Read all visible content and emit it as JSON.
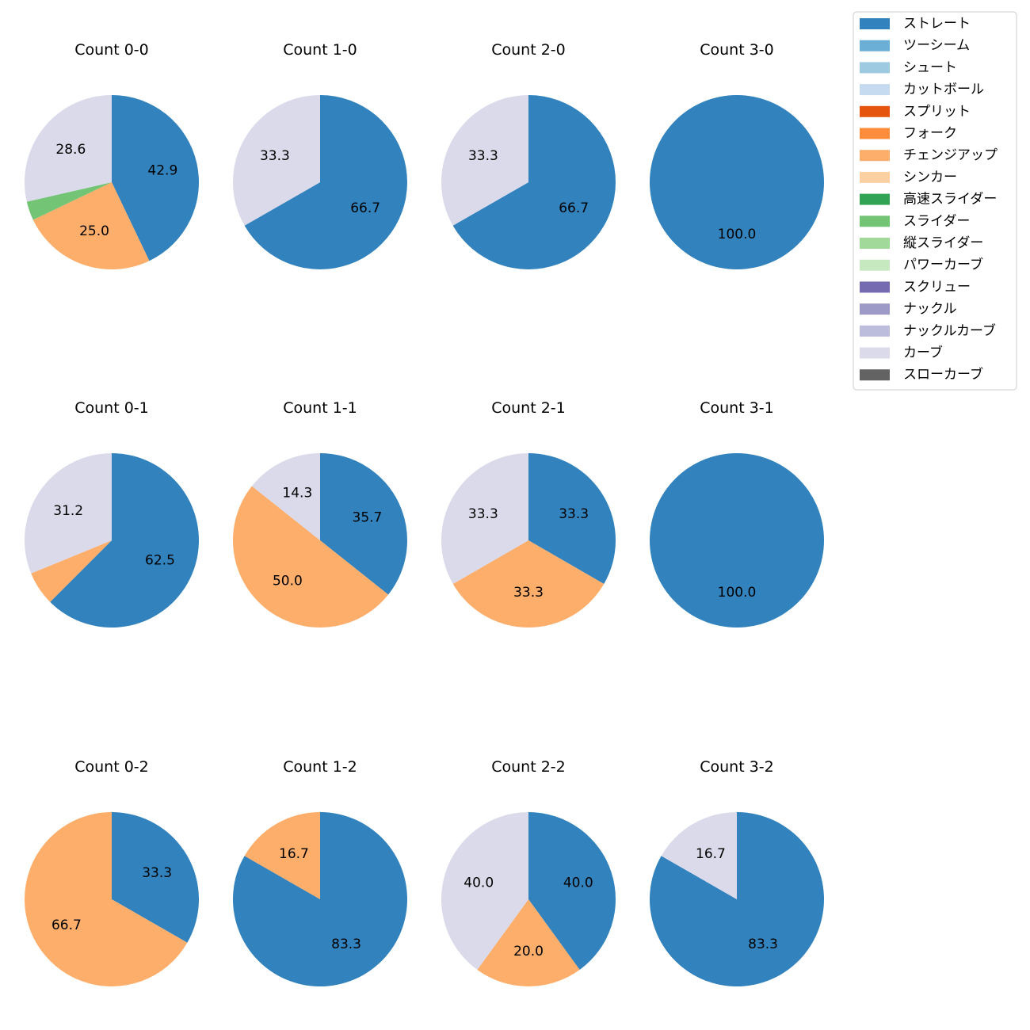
{
  "legend": [
    {
      "label": "ストレート",
      "color": "#3182bd"
    },
    {
      "label": "ツーシーム",
      "color": "#6baed6"
    },
    {
      "label": "シュート",
      "color": "#9ecae1"
    },
    {
      "label": "カットボール",
      "color": "#c6dbef"
    },
    {
      "label": "スプリット",
      "color": "#e6550d"
    },
    {
      "label": "フォーク",
      "color": "#fd8d3c"
    },
    {
      "label": "チェンジアップ",
      "color": "#fdae6b"
    },
    {
      "label": "シンカー",
      "color": "#fdd0a2"
    },
    {
      "label": "高速スライダー",
      "color": "#31a354"
    },
    {
      "label": "スライダー",
      "color": "#74c476"
    },
    {
      "label": "縦スライダー",
      "color": "#a1d99b"
    },
    {
      "label": "パワーカーブ",
      "color": "#c7e9c0"
    },
    {
      "label": "スクリュー",
      "color": "#756bb1"
    },
    {
      "label": "ナックル",
      "color": "#9e9ac8"
    },
    {
      "label": "ナックルカーブ",
      "color": "#bcbddc"
    },
    {
      "label": "カーブ",
      "color": "#dadaeb"
    },
    {
      "label": "スローカーブ",
      "color": "#636363"
    }
  ],
  "chart_data": [
    {
      "type": "pie",
      "title": "Count 0-0",
      "slices": [
        {
          "label": "ストレート",
          "value": 42.9,
          "show": true
        },
        {
          "label": "チェンジアップ",
          "value": 25.0,
          "show": true
        },
        {
          "label": "スライダー",
          "value": 3.5,
          "show": false
        },
        {
          "label": "カーブ",
          "value": 28.6,
          "show": true
        }
      ]
    },
    {
      "type": "pie",
      "title": "Count 1-0",
      "slices": [
        {
          "label": "ストレート",
          "value": 66.7,
          "show": true
        },
        {
          "label": "カーブ",
          "value": 33.3,
          "show": true
        }
      ]
    },
    {
      "type": "pie",
      "title": "Count 2-0",
      "slices": [
        {
          "label": "ストレート",
          "value": 66.7,
          "show": true
        },
        {
          "label": "カーブ",
          "value": 33.3,
          "show": true
        }
      ]
    },
    {
      "type": "pie",
      "title": "Count 3-0",
      "slices": [
        {
          "label": "ストレート",
          "value": 100.0,
          "show": true
        }
      ]
    },
    {
      "type": "pie",
      "title": "Count 0-1",
      "slices": [
        {
          "label": "ストレート",
          "value": 62.5,
          "show": true
        },
        {
          "label": "チェンジアップ",
          "value": 6.3,
          "show": false
        },
        {
          "label": "カーブ",
          "value": 31.2,
          "show": true
        }
      ]
    },
    {
      "type": "pie",
      "title": "Count 1-1",
      "slices": [
        {
          "label": "ストレート",
          "value": 35.7,
          "show": true
        },
        {
          "label": "チェンジアップ",
          "value": 50.0,
          "show": true
        },
        {
          "label": "カーブ",
          "value": 14.3,
          "show": true
        }
      ]
    },
    {
      "type": "pie",
      "title": "Count 2-1",
      "slices": [
        {
          "label": "ストレート",
          "value": 33.3,
          "show": true
        },
        {
          "label": "チェンジアップ",
          "value": 33.3,
          "show": true
        },
        {
          "label": "カーブ",
          "value": 33.3,
          "show": true
        }
      ]
    },
    {
      "type": "pie",
      "title": "Count 3-1",
      "slices": [
        {
          "label": "ストレート",
          "value": 100.0,
          "show": true
        }
      ]
    },
    {
      "type": "pie",
      "title": "Count 0-2",
      "slices": [
        {
          "label": "ストレート",
          "value": 33.3,
          "show": true
        },
        {
          "label": "チェンジアップ",
          "value": 66.7,
          "show": true
        }
      ]
    },
    {
      "type": "pie",
      "title": "Count 1-2",
      "slices": [
        {
          "label": "ストレート",
          "value": 83.3,
          "show": true
        },
        {
          "label": "チェンジアップ",
          "value": 16.7,
          "show": true
        }
      ]
    },
    {
      "type": "pie",
      "title": "Count 2-2",
      "slices": [
        {
          "label": "ストレート",
          "value": 40.0,
          "show": true
        },
        {
          "label": "チェンジアップ",
          "value": 20.0,
          "show": true
        },
        {
          "label": "カーブ",
          "value": 40.0,
          "show": true
        }
      ]
    },
    {
      "type": "pie",
      "title": "Count 3-2",
      "slices": [
        {
          "label": "ストレート",
          "value": 83.3,
          "show": true
        },
        {
          "label": "カーブ",
          "value": 16.7,
          "show": true
        }
      ]
    }
  ]
}
